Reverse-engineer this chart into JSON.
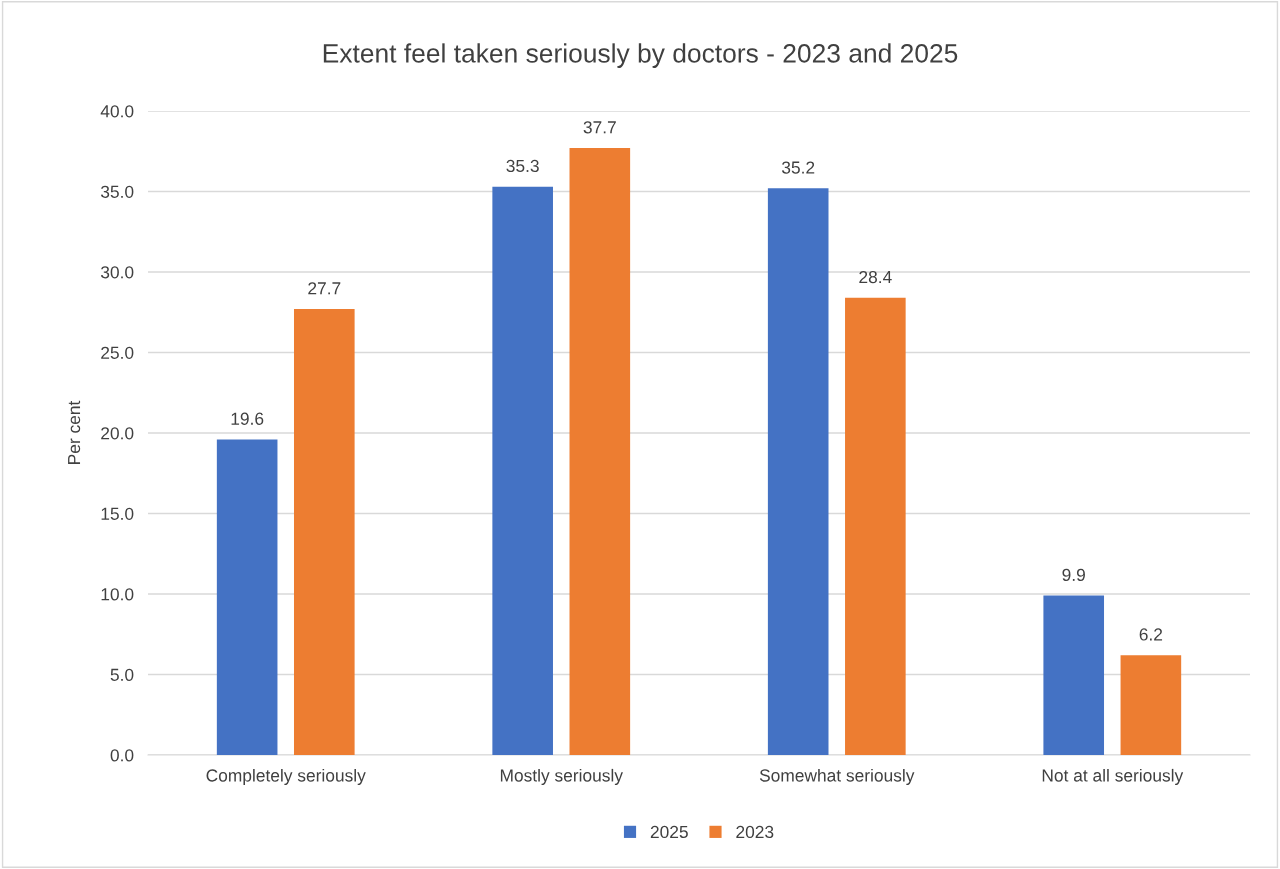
{
  "chart_data": {
    "type": "bar",
    "title": "Extent feel taken seriously by doctors - 2023 and 2025",
    "ylabel": "Per cent",
    "categories": [
      "Completely seriously",
      "Mostly seriously",
      "Somewhat seriously",
      "Not at all seriously"
    ],
    "series": [
      {
        "name": "2025",
        "color": "#4472c4",
        "values": [
          19.6,
          35.3,
          35.2,
          9.9
        ]
      },
      {
        "name": "2023",
        "color": "#ed7d31",
        "values": [
          27.7,
          37.7,
          28.4,
          6.2
        ]
      }
    ],
    "ylim": [
      0,
      40
    ],
    "yticks": [
      {
        "value": 0,
        "label": "0.0"
      },
      {
        "value": 5,
        "label": "5.0"
      },
      {
        "value": 10,
        "label": "10.0"
      },
      {
        "value": 15,
        "label": "15.0"
      },
      {
        "value": 20,
        "label": "20.0"
      },
      {
        "value": 25,
        "label": "25.0"
      },
      {
        "value": 30,
        "label": "30.0"
      },
      {
        "value": 35,
        "label": "35.0"
      },
      {
        "value": 40,
        "label": "40.0"
      }
    ],
    "grid": "y",
    "legend": "bottom",
    "data_labels": true
  }
}
